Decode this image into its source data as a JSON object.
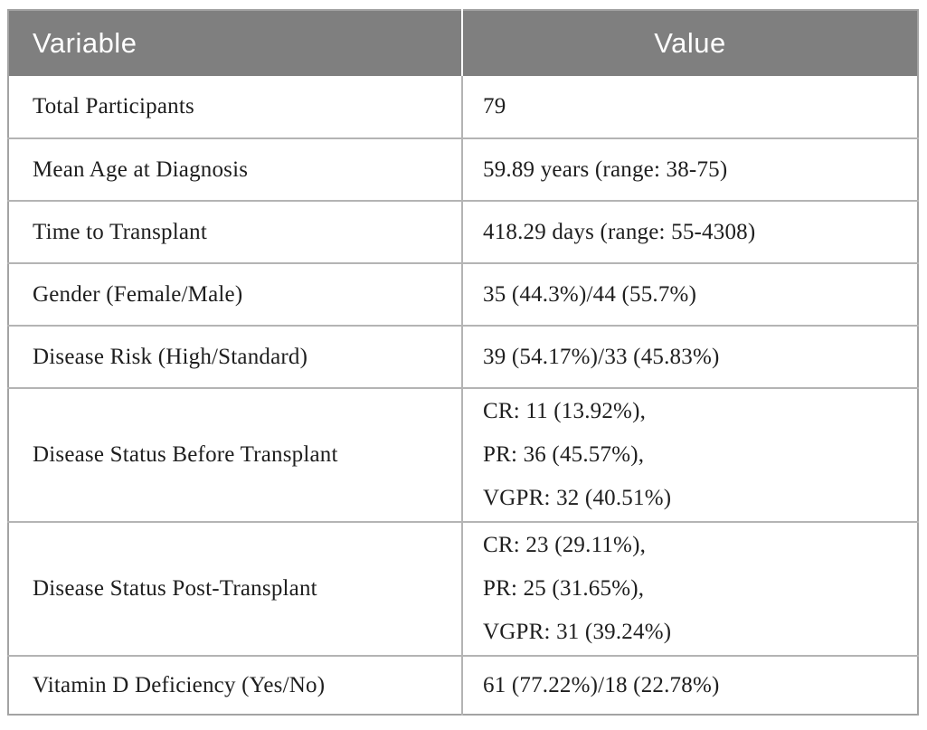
{
  "table": {
    "headers": [
      "Variable",
      "Value"
    ],
    "rows": [
      {
        "variable": "Total Participants",
        "value_lines": [
          "79"
        ]
      },
      {
        "variable": "Mean Age at Diagnosis",
        "value_lines": [
          "59.89 years (range: 38-75)"
        ]
      },
      {
        "variable": "Time to Transplant",
        "value_lines": [
          "418.29 days (range: 55-4308)"
        ]
      },
      {
        "variable": "Gender (Female/Male)",
        "value_lines": [
          "35 (44.3%)/44 (55.7%)"
        ]
      },
      {
        "variable": "Disease Risk (High/Standard)",
        "value_lines": [
          "39 (54.17%)/33 (45.83%)"
        ]
      },
      {
        "variable": "Disease Status Before Transplant",
        "value_lines": [
          "CR: 11 (13.92%),",
          "PR: 36 (45.57%),",
          "VGPR: 32 (40.51%)"
        ]
      },
      {
        "variable": "Disease Status Post-Transplant",
        "value_lines": [
          "CR: 23 (29.11%),",
          "PR: 25 (31.65%),",
          "VGPR: 31 (39.24%)"
        ]
      },
      {
        "variable": "Vitamin D Deficiency (Yes/No)",
        "value_lines": [
          "61 (77.22%)/18 (22.78%)"
        ]
      }
    ],
    "colors": {
      "header_bg": "#7f7f7f",
      "header_text": "#ffffff",
      "body_text": "#1e1e1e",
      "outer_border": "#a3a3a3",
      "divider": "#b4b4b4",
      "cell_bg": "#ffffff"
    }
  }
}
